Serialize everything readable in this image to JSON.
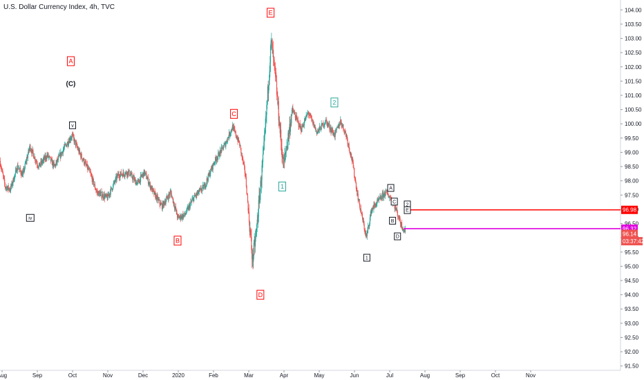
{
  "chart_data": {
    "type": "candlestick",
    "title": "U.S. Dollar Currency Index, 4h, TVC",
    "ylim": [
      91.25,
      104.25
    ],
    "y_ticks": [
      91.5,
      92.0,
      92.5,
      93.0,
      93.5,
      94.0,
      94.5,
      95.0,
      95.5,
      96.0,
      96.5,
      97.0,
      97.5,
      98.0,
      98.5,
      99.0,
      99.5,
      100.0,
      100.5,
      101.0,
      101.5,
      102.0,
      102.5,
      103.0,
      103.5,
      104.0
    ],
    "y_tick_labels": [
      "91.50",
      "92.00",
      "92.50",
      "93.00",
      "93.50",
      "94.00",
      "94.50",
      "95.00",
      "95.50",
      "96.00",
      "96.50",
      "97.00",
      "97.50",
      "98.00",
      "98.50",
      "99.00",
      "99.50",
      "100.00",
      "100.50",
      "101.00",
      "101.50",
      "102.00",
      "102.50",
      "103.00",
      "103.50",
      "104.00"
    ],
    "x_ticks": [
      {
        "label": "Aug",
        "t": 0
      },
      {
        "label": "Sep",
        "t": 1
      },
      {
        "label": "Oct",
        "t": 2
      },
      {
        "label": "Nov",
        "t": 3
      },
      {
        "label": "Dec",
        "t": 4
      },
      {
        "label": "2020",
        "t": 5
      },
      {
        "label": "Feb",
        "t": 6
      },
      {
        "label": "Mar",
        "t": 7
      },
      {
        "label": "Apr",
        "t": 8
      },
      {
        "label": "May",
        "t": 9
      },
      {
        "label": "Jun",
        "t": 10
      },
      {
        "label": "Jul",
        "t": 11
      },
      {
        "label": "Aug",
        "t": 12
      },
      {
        "label": "Sep",
        "t": 13
      },
      {
        "label": "Oct",
        "t": 14
      },
      {
        "label": "Nov",
        "t": 15
      }
    ],
    "price_path": [
      [
        -0.05,
        98.7
      ],
      [
        0.1,
        97.8
      ],
      [
        0.25,
        97.7
      ],
      [
        0.45,
        98.5
      ],
      [
        0.6,
        98.2
      ],
      [
        0.8,
        99.2
      ],
      [
        1.05,
        98.5
      ],
      [
        1.3,
        98.9
      ],
      [
        1.5,
        98.5
      ],
      [
        1.75,
        99.1
      ],
      [
        2.0,
        99.6
      ],
      [
        2.2,
        99.0
      ],
      [
        2.5,
        98.3
      ],
      [
        2.7,
        97.6
      ],
      [
        3.0,
        97.4
      ],
      [
        3.3,
        98.2
      ],
      [
        3.6,
        98.3
      ],
      [
        3.85,
        97.9
      ],
      [
        4.05,
        98.3
      ],
      [
        4.3,
        97.6
      ],
      [
        4.55,
        97.1
      ],
      [
        4.8,
        97.6
      ],
      [
        5.0,
        96.7
      ],
      [
        5.2,
        96.8
      ],
      [
        5.45,
        97.4
      ],
      [
        5.75,
        97.8
      ],
      [
        6.05,
        98.7
      ],
      [
        6.35,
        99.3
      ],
      [
        6.55,
        99.9
      ],
      [
        6.75,
        99.3
      ],
      [
        6.92,
        98.2
      ],
      [
        7.12,
        95.2
      ],
      [
        7.22,
        96.1
      ],
      [
        7.45,
        99.2
      ],
      [
        7.65,
        102.9
      ],
      [
        7.78,
        101.5
      ],
      [
        7.92,
        99.5
      ],
      [
        8.0,
        98.5
      ],
      [
        8.25,
        100.5
      ],
      [
        8.5,
        99.8
      ],
      [
        8.7,
        100.4
      ],
      [
        8.95,
        99.7
      ],
      [
        9.2,
        100.1
      ],
      [
        9.45,
        99.6
      ],
      [
        9.62,
        100.1
      ],
      [
        9.78,
        99.6
      ],
      [
        9.95,
        98.7
      ],
      [
        10.1,
        97.5
      ],
      [
        10.25,
        96.6
      ],
      [
        10.35,
        96.0
      ],
      [
        10.5,
        97.0
      ],
      [
        10.7,
        97.3
      ],
      [
        10.9,
        97.6
      ],
      [
        11.1,
        97.3
      ],
      [
        11.22,
        96.9
      ],
      [
        11.33,
        96.5
      ],
      [
        11.45,
        96.2
      ]
    ],
    "wave_labels": [
      {
        "text": "A",
        "t": 1.95,
        "price": 102.2,
        "style": "red"
      },
      {
        "text": "(C)",
        "t": 1.95,
        "price": 101.4,
        "style": "plain"
      },
      {
        "text": "v",
        "t": 2.0,
        "price": 99.95,
        "style": "black"
      },
      {
        "text": "iv",
        "t": 0.8,
        "price": 96.7,
        "style": "black"
      },
      {
        "text": "B",
        "t": 4.98,
        "price": 95.9,
        "style": "red"
      },
      {
        "text": "C",
        "t": 6.58,
        "price": 100.35,
        "style": "red"
      },
      {
        "text": "D",
        "t": 7.33,
        "price": 94.0,
        "style": "red"
      },
      {
        "text": "E",
        "t": 7.62,
        "price": 103.9,
        "style": "red"
      },
      {
        "text": "1",
        "t": 7.95,
        "price": 97.8,
        "style": "teal"
      },
      {
        "text": "2",
        "t": 9.43,
        "price": 100.75,
        "style": "teal"
      },
      {
        "text": "1",
        "t": 10.35,
        "price": 95.3,
        "style": "black"
      },
      {
        "text": "A",
        "t": 11.03,
        "price": 97.75,
        "style": "black"
      },
      {
        "text": "C",
        "t": 11.13,
        "price": 97.27,
        "style": "black"
      },
      {
        "text": "2",
        "t": 11.5,
        "price": 97.17,
        "style": "black"
      },
      {
        "text": "E",
        "t": 11.5,
        "price": 96.97,
        "style": "black"
      },
      {
        "text": "B",
        "t": 11.08,
        "price": 96.6,
        "style": "black"
      },
      {
        "text": "D",
        "t": 11.22,
        "price": 96.05,
        "style": "black"
      }
    ],
    "horizontal_lines": [
      {
        "price": 96.98,
        "start_t": 11.4,
        "color": "#ff0000"
      },
      {
        "price": 96.32,
        "start_t": 11.4,
        "color": "#e000e0"
      }
    ],
    "price_badges": [
      {
        "label": "96.98",
        "price": 96.98,
        "color": "#ff0000"
      },
      {
        "label": "96.32",
        "price": 96.32,
        "color": "#e000e0"
      },
      {
        "label": "96.14",
        "price": 96.14,
        "color": "#ef5350"
      },
      {
        "label": "03:37:42",
        "price": 95.88,
        "color": "#ef5350"
      }
    ],
    "colors": {
      "up": "#26a69a",
      "down": "#ef5350",
      "red_label": "#ff0000",
      "teal_label": "#26a69a",
      "axis_text": "#131722",
      "axis_line": "#d1d4dc"
    }
  }
}
